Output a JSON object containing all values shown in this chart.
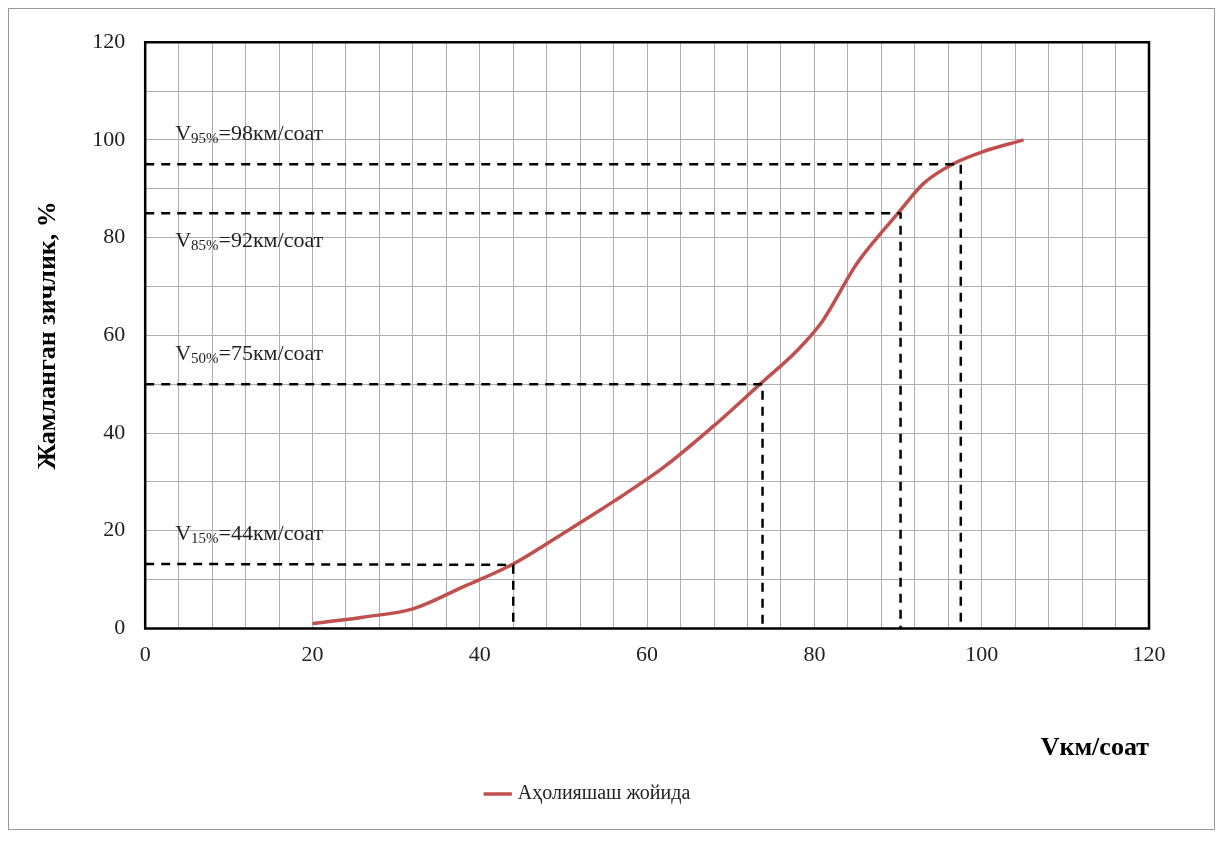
{
  "chart_data": {
    "type": "line",
    "xlabel": "Vкм/соат",
    "ylabel": "Жамланган зичлик, %",
    "xlim": [
      0,
      120
    ],
    "xticks": [
      0,
      {
        "value": 4,
        "label": null
      },
      {
        "value": 8,
        "label": null
      },
      {
        "value": 12,
        "label": null
      },
      {
        "value": 16,
        "label": null
      },
      20,
      {
        "value": 24,
        "label": null
      },
      {
        "value": 28,
        "label": null
      },
      {
        "value": 32,
        "label": null
      },
      {
        "value": 36,
        "label": null
      },
      40,
      {
        "value": 44,
        "label": null
      },
      {
        "value": 48,
        "label": null
      },
      {
        "value": 52,
        "label": null
      },
      {
        "value": 56,
        "label": null
      },
      60,
      {
        "value": 64,
        "label": null
      },
      {
        "value": 68,
        "label": null
      },
      {
        "value": 72,
        "label": null
      },
      {
        "value": 76,
        "label": null
      },
      80,
      {
        "value": 84,
        "label": null
      },
      {
        "value": 88,
        "label": null
      },
      {
        "value": 92,
        "label": null
      },
      {
        "value": 96,
        "label": null
      },
      100,
      {
        "value": 104,
        "label": null
      },
      {
        "value": 108,
        "label": null
      },
      {
        "value": 112,
        "label": null
      },
      {
        "value": 116,
        "label": null
      },
      120
    ],
    "ylim": [
      0,
      120
    ],
    "yticks": [
      0,
      {
        "value": 10,
        "label": null
      },
      20,
      {
        "value": 30,
        "label": null
      },
      40,
      {
        "value": 50,
        "label": null
      },
      60,
      {
        "value": 70,
        "label": null
      },
      80,
      {
        "value": 90,
        "label": null
      },
      100,
      {
        "value": 110,
        "label": null
      },
      120
    ],
    "grid": true,
    "legend": "bottom",
    "marker": "none",
    "series": [
      {
        "name": "Аҳолияшаш жойида",
        "color": "#c0504d",
        "line_style": "solid",
        "x": [
          20,
          26,
          32,
          38,
          44,
          50,
          56,
          62,
          68,
          73.5,
          78,
          81,
          85,
          88,
          90,
          93,
          96.5,
          100,
          105
        ],
        "values": [
          1,
          2.3,
          4,
          8.5,
          13.2,
          19.5,
          26,
          33,
          41.5,
          50,
          57,
          63,
          74.5,
          81,
          85,
          91,
          95,
          97.5,
          100
        ]
      },
      {
        "color": "#000000",
        "line_style": "dashed",
        "x": [
          0,
          97,
          97.5,
          97.5
        ],
        "values": [
          95,
          95,
          95,
          0
        ]
      },
      {
        "color": "#000000",
        "line_style": "dashed",
        "x": [
          0,
          90,
          90.3,
          90.3
        ],
        "values": [
          85,
          85,
          85,
          0
        ]
      },
      {
        "color": "#000000",
        "line_style": "dashed",
        "x": [
          0,
          73.5,
          73.8,
          73.8
        ],
        "values": [
          50,
          50,
          50,
          0
        ]
      },
      {
        "color": "#000000",
        "line_style": "dashed",
        "x": [
          0,
          44,
          44,
          44
        ],
        "values": [
          13.2,
          13,
          13,
          0
        ]
      }
    ],
    "annotations": [
      "V$_{95%}$=98км/соат",
      "V$_{85%}$=92км/соат",
      "V$_{50%}$=75км/соат",
      "V$_{15%}$=44км/соат"
    ]
  }
}
